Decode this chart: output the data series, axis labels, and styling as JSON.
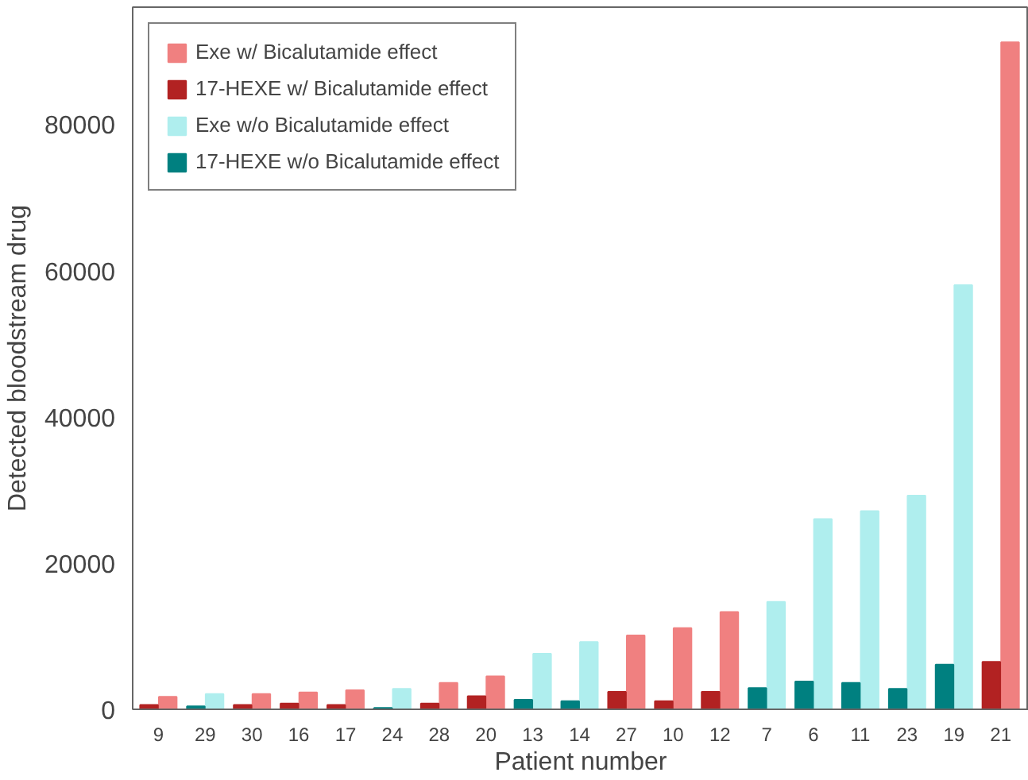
{
  "chart_data": {
    "type": "bar",
    "xlabel": "Patient number",
    "ylabel": "Detected bloodstream drug",
    "categories": [
      "9",
      "29",
      "30",
      "16",
      "17",
      "24",
      "28",
      "20",
      "13",
      "14",
      "27",
      "10",
      "12",
      "7",
      "6",
      "11",
      "23",
      "19",
      "21"
    ],
    "series": [
      {
        "name": "Exe w/ Bicalutamide effect",
        "color": "#f08080",
        "values": [
          1700,
          null,
          2100,
          2300,
          2600,
          null,
          3600,
          4500,
          null,
          null,
          10100,
          11100,
          13300,
          null,
          null,
          null,
          null,
          null,
          91200
        ]
      },
      {
        "name": "17-HEXE w/ Bicalutamide effect",
        "color": "#b22222",
        "values": [
          600,
          null,
          600,
          800,
          600,
          null,
          800,
          1800,
          null,
          null,
          2400,
          1100,
          2400,
          null,
          null,
          null,
          null,
          null,
          6500
        ]
      },
      {
        "name": "Exe w/o Bicalutamide effect",
        "color": "#afeeee",
        "values": [
          null,
          2100,
          null,
          null,
          null,
          2800,
          null,
          null,
          7600,
          9200,
          null,
          null,
          null,
          14700,
          26000,
          27100,
          29200,
          58000,
          null
        ]
      },
      {
        "name": "17-HEXE w/o Bicalutamide effect",
        "color": "#008080",
        "values": [
          null,
          400,
          null,
          null,
          null,
          200,
          null,
          null,
          1300,
          1100,
          null,
          null,
          null,
          2900,
          3800,
          3600,
          2800,
          6100,
          null
        ]
      }
    ],
    "ylim": [
      0,
      96000
    ],
    "yticks": [
      0,
      20000,
      40000,
      60000,
      80000
    ],
    "grid": false,
    "legend": "top left"
  }
}
